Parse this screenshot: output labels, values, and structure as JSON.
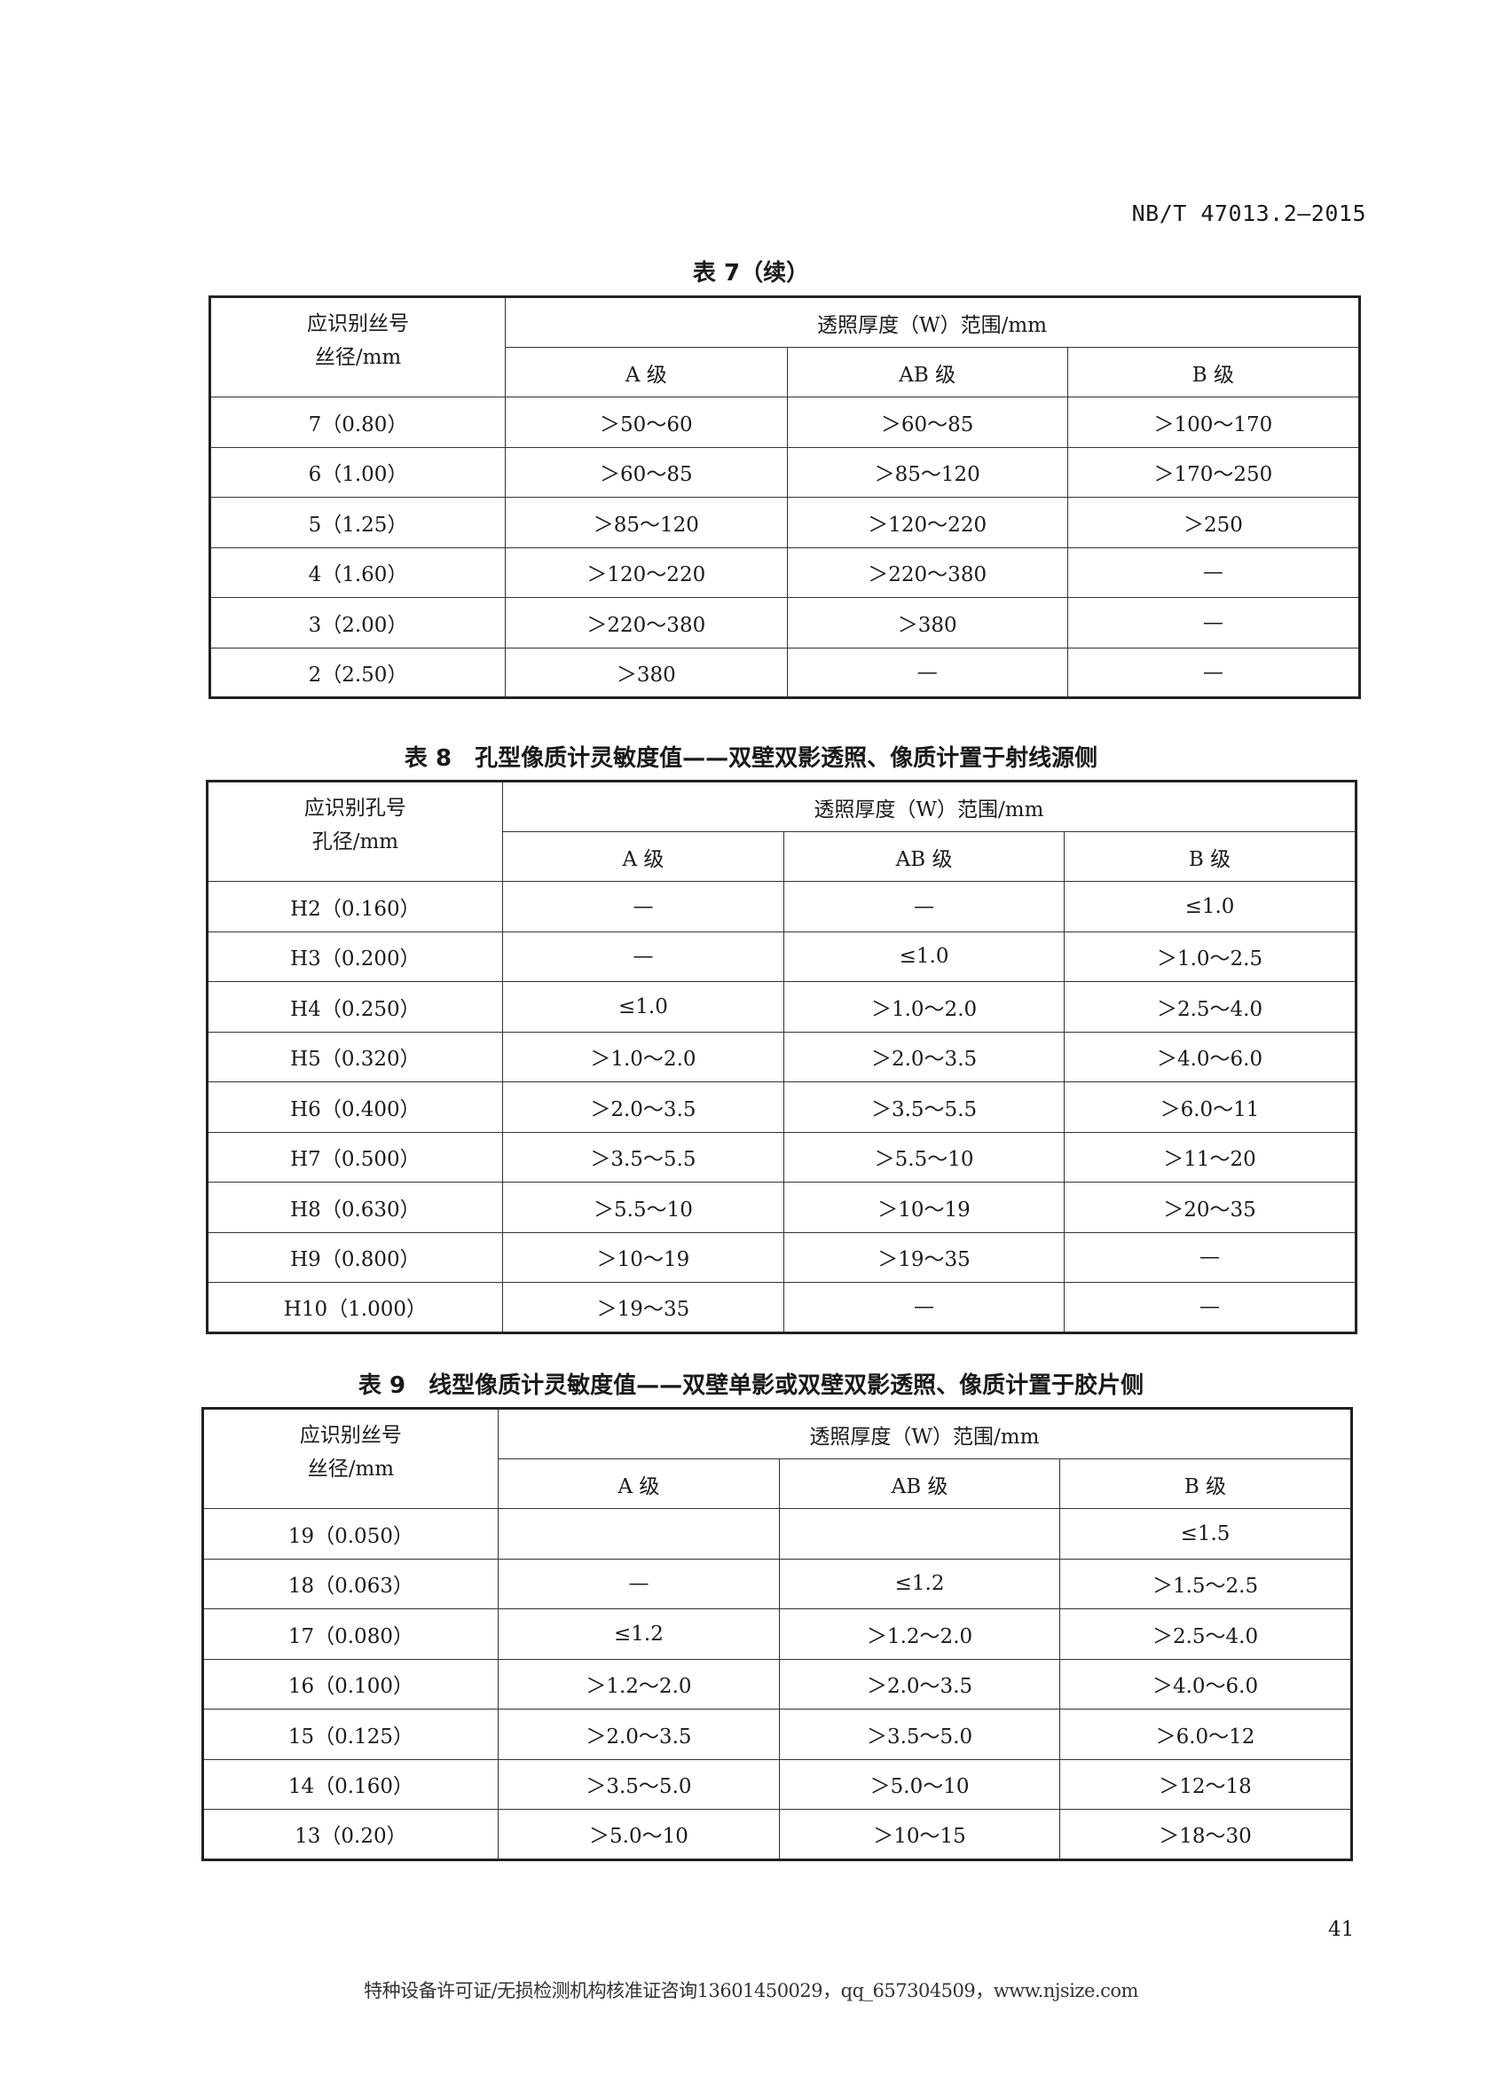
{
  "header": {
    "standard_number": "NB/T 47013.2—2015"
  },
  "tables": [
    {
      "caption": "表 7（续）",
      "corner": [
        "应识别丝号",
        "丝径/mm"
      ],
      "group_header": "透照厚度（W）范围/mm",
      "columns": [
        "A 级",
        "AB 级",
        "B 级"
      ],
      "rows": [
        [
          "7（0.80）",
          "＞50～60",
          "＞60～85",
          "＞100～170"
        ],
        [
          "6（1.00）",
          "＞60～85",
          "＞85～120",
          "＞170～250"
        ],
        [
          "5（1.25）",
          "＞85～120",
          "＞120～220",
          "＞250"
        ],
        [
          "4（1.60）",
          "＞120～220",
          "＞220～380",
          "—"
        ],
        [
          "3（2.00）",
          "＞220～380",
          "＞380",
          "—"
        ],
        [
          "2（2.50）",
          "＞380",
          "—",
          "—"
        ]
      ]
    },
    {
      "caption": "表 8　孔型像质计灵敏度值——双壁双影透照、像质计置于射线源侧",
      "corner": [
        "应识别孔号",
        "孔径/mm"
      ],
      "group_header": "透照厚度（W）范围/mm",
      "columns": [
        "A 级",
        "AB 级",
        "B 级"
      ],
      "rows": [
        [
          "H2（0.160）",
          "—",
          "—",
          "≤1.0"
        ],
        [
          "H3（0.200）",
          "—",
          "≤1.0",
          "＞1.0～2.5"
        ],
        [
          "H4（0.250）",
          "≤1.0",
          "＞1.0～2.0",
          "＞2.5～4.0"
        ],
        [
          "H5（0.320）",
          "＞1.0～2.0",
          "＞2.0～3.5",
          "＞4.0～6.0"
        ],
        [
          "H6（0.400）",
          "＞2.0～3.5",
          "＞3.5～5.5",
          "＞6.0～11"
        ],
        [
          "H7（0.500）",
          "＞3.5～5.5",
          "＞5.5～10",
          "＞11～20"
        ],
        [
          "H8（0.630）",
          "＞5.5～10",
          "＞10～19",
          "＞20～35"
        ],
        [
          "H9（0.800）",
          "＞10～19",
          "＞19～35",
          "—"
        ],
        [
          "H10（1.000）",
          "＞19～35",
          "—",
          "—"
        ]
      ]
    },
    {
      "caption": "表 9　线型像质计灵敏度值——双壁单影或双壁双影透照、像质计置于胶片侧",
      "corner": [
        "应识别丝号",
        "丝径/mm"
      ],
      "group_header": "透照厚度（W）范围/mm",
      "columns": [
        "A 级",
        "AB 级",
        "B 级"
      ],
      "rows": [
        [
          "19（0.050）",
          "",
          "",
          "≤1.5"
        ],
        [
          "18（0.063）",
          "—",
          "≤1.2",
          "＞1.5～2.5"
        ],
        [
          "17（0.080）",
          "≤1.2",
          "＞1.2～2.0",
          "＞2.5～4.0"
        ],
        [
          "16（0.100）",
          "＞1.2～2.0",
          "＞2.0～3.5",
          "＞4.0～6.0"
        ],
        [
          "15（0.125）",
          "＞2.0～3.5",
          "＞3.5～5.0",
          "＞6.0～12"
        ],
        [
          "14（0.160）",
          "＞3.5～5.0",
          "＞5.0～10",
          "＞12～18"
        ],
        [
          "13（0.20）",
          "＞5.0～10",
          "＞10～15",
          "＞18～30"
        ]
      ]
    }
  ],
  "page_number": "41",
  "footer": "特种设备许可证/无损检测机构核准证咨询13601450029，qq_657304509，www.njsize.com"
}
